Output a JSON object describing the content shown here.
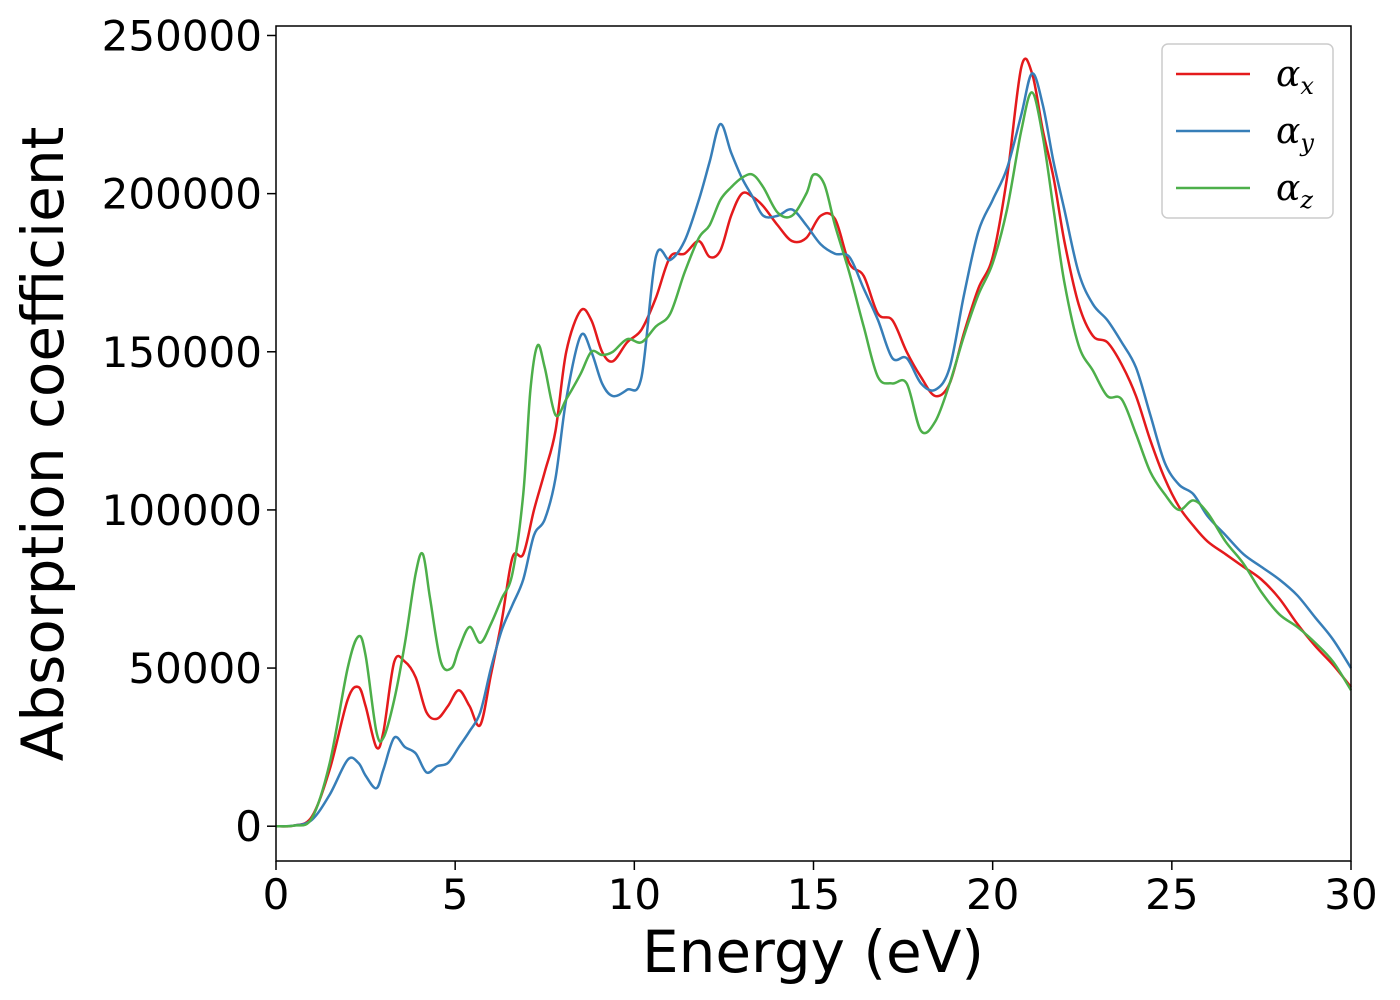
{
  "chart_data": {
    "type": "line",
    "xlabel": "Energy (eV)",
    "ylabel": "Absorption coefficient",
    "xlim": [
      0,
      30
    ],
    "ylim": [
      -11000,
      253000
    ],
    "xticks": [
      0,
      5,
      10,
      15,
      20,
      25,
      30
    ],
    "yticks": [
      0,
      50000,
      100000,
      150000,
      200000,
      250000
    ],
    "xtick_labels": [
      "0",
      "5",
      "10",
      "15",
      "20",
      "25",
      "30"
    ],
    "ytick_labels": [
      "0",
      "50000",
      "100000",
      "150000",
      "200000",
      "250000"
    ],
    "grid": false,
    "legend_position": "top-right",
    "series": [
      {
        "name": "α",
        "subscript": "x",
        "color": "#e41a1c",
        "x": [
          0,
          0.5,
          1.0,
          1.5,
          2.0,
          2.3,
          2.5,
          2.8,
          3.0,
          3.3,
          3.6,
          3.9,
          4.2,
          4.5,
          4.8,
          5.1,
          5.4,
          5.7,
          6.0,
          6.3,
          6.6,
          6.9,
          7.2,
          7.5,
          7.8,
          8.1,
          8.5,
          8.8,
          9.1,
          9.4,
          9.8,
          10.2,
          10.6,
          11.0,
          11.4,
          11.8,
          12.1,
          12.4,
          12.7,
          13.0,
          13.3,
          13.6,
          14.0,
          14.4,
          14.8,
          15.2,
          15.6,
          16.0,
          16.4,
          16.8,
          17.2,
          17.6,
          18.0,
          18.4,
          18.8,
          19.2,
          19.6,
          20.0,
          20.4,
          20.8,
          21.1,
          21.4,
          21.7,
          22.0,
          22.4,
          22.8,
          23.2,
          23.6,
          24.0,
          24.4,
          24.8,
          25.2,
          25.6,
          26.0,
          26.5,
          27.0,
          27.5,
          28.0,
          28.5,
          29.0,
          29.5,
          30.0
        ],
        "y": [
          0,
          200,
          3000,
          18000,
          40000,
          44000,
          38000,
          25000,
          30000,
          52000,
          52000,
          47000,
          36000,
          34000,
          38000,
          43000,
          38000,
          32000,
          48000,
          65000,
          85000,
          86000,
          100000,
          112000,
          125000,
          150000,
          163000,
          160000,
          150000,
          147000,
          153000,
          157000,
          167000,
          180000,
          181000,
          185000,
          180000,
          182000,
          193000,
          200000,
          199000,
          196000,
          190000,
          185000,
          186000,
          193000,
          192000,
          178000,
          174000,
          162000,
          160000,
          150000,
          142000,
          136000,
          140000,
          156000,
          170000,
          180000,
          205000,
          240000,
          238000,
          220000,
          205000,
          185000,
          165000,
          155000,
          153000,
          146000,
          136000,
          122000,
          110000,
          101000,
          95000,
          90000,
          86000,
          82000,
          78000,
          72000,
          64000,
          57000,
          51000,
          44000
        ]
      },
      {
        "name": "α",
        "subscript": "y",
        "color": "#377eb8",
        "x": [
          0,
          0.5,
          1.0,
          1.5,
          2.0,
          2.3,
          2.5,
          2.8,
          3.0,
          3.3,
          3.6,
          3.9,
          4.2,
          4.5,
          4.8,
          5.1,
          5.4,
          5.7,
          6.0,
          6.3,
          6.6,
          6.9,
          7.2,
          7.5,
          7.8,
          8.1,
          8.5,
          8.8,
          9.1,
          9.4,
          9.8,
          10.2,
          10.6,
          11.0,
          11.4,
          11.8,
          12.1,
          12.4,
          12.7,
          13.0,
          13.3,
          13.6,
          14.0,
          14.4,
          14.8,
          15.2,
          15.6,
          16.0,
          16.4,
          16.8,
          17.2,
          17.6,
          18.0,
          18.4,
          18.8,
          19.2,
          19.6,
          20.0,
          20.4,
          20.8,
          21.1,
          21.4,
          21.7,
          22.0,
          22.4,
          22.8,
          23.2,
          23.6,
          24.0,
          24.4,
          24.8,
          25.2,
          25.6,
          26.0,
          26.5,
          27.0,
          27.5,
          28.0,
          28.5,
          29.0,
          29.5,
          30.0
        ],
        "y": [
          0,
          200,
          2000,
          10000,
          21000,
          20000,
          16000,
          12000,
          18000,
          28000,
          25000,
          23000,
          17000,
          19000,
          20000,
          25000,
          30000,
          36000,
          50000,
          62000,
          70000,
          78000,
          92000,
          97000,
          110000,
          135000,
          155000,
          150000,
          140000,
          136000,
          138000,
          142000,
          180000,
          179000,
          185000,
          198000,
          210000,
          222000,
          213000,
          205000,
          199000,
          193000,
          193000,
          195000,
          190000,
          184000,
          181000,
          180000,
          170000,
          160000,
          148000,
          148000,
          140000,
          138000,
          145000,
          168000,
          188000,
          198000,
          208000,
          225000,
          238000,
          228000,
          210000,
          195000,
          175000,
          165000,
          160000,
          153000,
          145000,
          130000,
          115000,
          108000,
          105000,
          98000,
          92000,
          86000,
          82000,
          78000,
          73000,
          66000,
          59000,
          50000
        ]
      },
      {
        "name": "α",
        "subscript": "z",
        "color": "#4daf4a",
        "x": [
          0,
          0.5,
          1.0,
          1.5,
          2.0,
          2.3,
          2.5,
          2.8,
          3.0,
          3.3,
          3.6,
          3.9,
          4.1,
          4.3,
          4.6,
          4.9,
          5.1,
          5.4,
          5.7,
          6.0,
          6.3,
          6.6,
          6.9,
          7.1,
          7.3,
          7.5,
          7.8,
          8.1,
          8.5,
          8.8,
          9.1,
          9.4,
          9.8,
          10.2,
          10.6,
          11.0,
          11.4,
          11.8,
          12.1,
          12.4,
          12.7,
          13.0,
          13.3,
          13.6,
          14.0,
          14.4,
          14.8,
          15.0,
          15.3,
          15.6,
          16.0,
          16.4,
          16.8,
          17.2,
          17.6,
          18.0,
          18.4,
          18.8,
          19.2,
          19.6,
          20.0,
          20.4,
          20.8,
          21.1,
          21.4,
          21.7,
          22.0,
          22.4,
          22.8,
          23.2,
          23.6,
          24.0,
          24.4,
          24.8,
          25.2,
          25.6,
          26.0,
          26.5,
          27.0,
          27.5,
          28.0,
          28.5,
          29.0,
          29.5,
          30.0
        ],
        "y": [
          0,
          200,
          2500,
          20000,
          50000,
          60000,
          54000,
          30000,
          28000,
          40000,
          58000,
          80000,
          86000,
          72000,
          52000,
          50000,
          56000,
          63000,
          58000,
          64000,
          72000,
          80000,
          105000,
          138000,
          152000,
          145000,
          130000,
          135000,
          143000,
          150000,
          149000,
          150000,
          154000,
          153000,
          158000,
          162000,
          175000,
          186000,
          190000,
          198000,
          202000,
          205000,
          206000,
          202000,
          194000,
          193000,
          200000,
          206000,
          203000,
          190000,
          175000,
          158000,
          142000,
          140000,
          140000,
          125000,
          128000,
          140000,
          155000,
          168000,
          178000,
          195000,
          220000,
          232000,
          218000,
          195000,
          172000,
          152000,
          144000,
          136000,
          135000,
          124000,
          112000,
          105000,
          100000,
          103000,
          99000,
          90000,
          83000,
          74000,
          67000,
          63000,
          58000,
          52000,
          43000
        ]
      }
    ]
  }
}
